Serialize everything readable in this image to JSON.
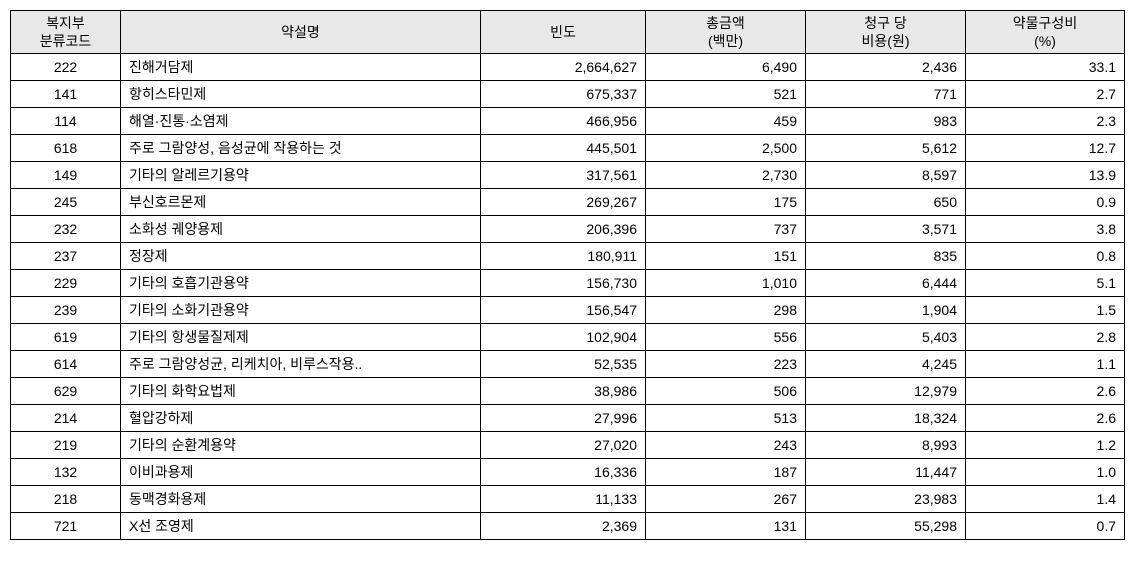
{
  "table": {
    "headers": {
      "code": "복지부\n분류코드",
      "name": "약설명",
      "frequency": "빈도",
      "amount": "총금액\n(백만)",
      "cost": "청구 당\n비용(원)",
      "ratio": "약물구성비\n(%)"
    },
    "rows": [
      {
        "code": "222",
        "name": "진해거담제",
        "frequency": "2,664,627",
        "amount": "6,490",
        "cost": "2,436",
        "ratio": "33.1"
      },
      {
        "code": "141",
        "name": "항히스타민제",
        "frequency": "675,337",
        "amount": "521",
        "cost": "771",
        "ratio": "2.7"
      },
      {
        "code": "114",
        "name": "해열·진통·소염제",
        "frequency": "466,956",
        "amount": "459",
        "cost": "983",
        "ratio": "2.3"
      },
      {
        "code": "618",
        "name": "주로 그람양성,  음성균에 작용하는 것",
        "frequency": "445,501",
        "amount": "2,500",
        "cost": "5,612",
        "ratio": "12.7"
      },
      {
        "code": "149",
        "name": "기타의 알레르기용약",
        "frequency": "317,561",
        "amount": "2,730",
        "cost": "8,597",
        "ratio": "13.9"
      },
      {
        "code": "245",
        "name": "부신호르몬제",
        "frequency": "269,267",
        "amount": "175",
        "cost": "650",
        "ratio": "0.9"
      },
      {
        "code": "232",
        "name": "소화성 궤양용제",
        "frequency": "206,396",
        "amount": "737",
        "cost": "3,571",
        "ratio": "3.8"
      },
      {
        "code": "237",
        "name": "정장제",
        "frequency": "180,911",
        "amount": "151",
        "cost": "835",
        "ratio": "0.8"
      },
      {
        "code": "229",
        "name": "기타의 호흡기관용약",
        "frequency": "156,730",
        "amount": "1,010",
        "cost": "6,444",
        "ratio": "5.1"
      },
      {
        "code": "239",
        "name": "기타의 소화기관용약",
        "frequency": "156,547",
        "amount": "298",
        "cost": "1,904",
        "ratio": "1.5"
      },
      {
        "code": "619",
        "name": "기타의 항생물질제제",
        "frequency": "102,904",
        "amount": "556",
        "cost": "5,403",
        "ratio": "2.8"
      },
      {
        "code": "614",
        "name": "주로 그람양성균,  리케치아,   비루스작용..",
        "frequency": "52,535",
        "amount": "223",
        "cost": "4,245",
        "ratio": "1.1"
      },
      {
        "code": "629",
        "name": "기타의 화학요법제",
        "frequency": "38,986",
        "amount": "506",
        "cost": "12,979",
        "ratio": "2.6"
      },
      {
        "code": "214",
        "name": "혈압강하제",
        "frequency": "27,996",
        "amount": "513",
        "cost": "18,324",
        "ratio": "2.6"
      },
      {
        "code": "219",
        "name": "기타의 순환계용약",
        "frequency": "27,020",
        "amount": "243",
        "cost": "8,993",
        "ratio": "1.2"
      },
      {
        "code": "132",
        "name": "이비과용제",
        "frequency": "16,336",
        "amount": "187",
        "cost": "11,447",
        "ratio": "1.0"
      },
      {
        "code": "218",
        "name": "동맥경화용제",
        "frequency": "11,133",
        "amount": "267",
        "cost": "23,983",
        "ratio": "1.4"
      },
      {
        "code": "721",
        "name": "X선 조영제",
        "frequency": "2,369",
        "amount": "131",
        "cost": "55,298",
        "ratio": "0.7"
      }
    ]
  }
}
